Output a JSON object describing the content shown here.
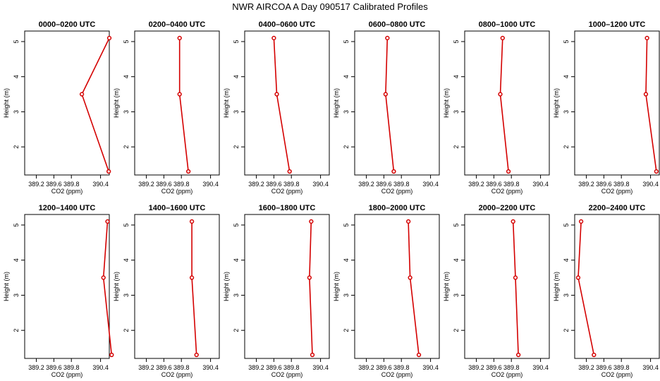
{
  "figure": {
    "title": "NWR AIRCOA A  Day 090517  Calibrated Profiles"
  },
  "style": {
    "line_color": "#d40000",
    "point_color": "#d40000",
    "axis_color": "#000000"
  },
  "chart_data": [
    {
      "type": "line",
      "title": "0000–0200 UTC",
      "xlabel": "CO2 (ppm)",
      "ylabel": "Height (m)",
      "xlim": [
        389.0,
        390.45
      ],
      "ylim": [
        1.2,
        5.3
      ],
      "xticks": [
        "389.2",
        "389.6",
        "389.8",
        "390.4"
      ],
      "yticks": [
        "2",
        "3",
        "4",
        "5"
      ],
      "series": [
        {
          "x": [
            390.45,
            389.98,
            390.44
          ],
          "y": [
            5.1,
            3.5,
            1.3
          ]
        }
      ]
    },
    {
      "type": "line",
      "title": "0200–0400 UTC",
      "xlabel": "CO2 (ppm)",
      "ylabel": "Height (m)",
      "xlim": [
        389.0,
        390.45
      ],
      "ylim": [
        1.2,
        5.3
      ],
      "xticks": [
        "389.2",
        "389.6",
        "389.8",
        "390.4"
      ],
      "yticks": [
        "2",
        "3",
        "4",
        "5"
      ],
      "series": [
        {
          "x": [
            389.77,
            389.77,
            389.92
          ],
          "y": [
            5.1,
            3.5,
            1.3
          ]
        }
      ]
    },
    {
      "type": "line",
      "title": "0400–0600 UTC",
      "xlabel": "CO2 (ppm)",
      "ylabel": "Height (m)",
      "xlim": [
        389.0,
        390.45
      ],
      "ylim": [
        1.2,
        5.3
      ],
      "xticks": [
        "389.2",
        "389.6",
        "389.8",
        "390.4"
      ],
      "yticks": [
        "2",
        "3",
        "4",
        "5"
      ],
      "series": [
        {
          "x": [
            389.5,
            389.55,
            389.77
          ],
          "y": [
            5.1,
            3.5,
            1.3
          ]
        }
      ]
    },
    {
      "type": "line",
      "title": "0600–0800 UTC",
      "xlabel": "CO2 (ppm)",
      "ylabel": "Height (m)",
      "xlim": [
        389.0,
        390.45
      ],
      "ylim": [
        1.2,
        5.3
      ],
      "xticks": [
        "389.2",
        "389.6",
        "389.8",
        "390.4"
      ],
      "yticks": [
        "2",
        "3",
        "4",
        "5"
      ],
      "series": [
        {
          "x": [
            389.56,
            389.53,
            389.67
          ],
          "y": [
            5.1,
            3.5,
            1.3
          ]
        }
      ]
    },
    {
      "type": "line",
      "title": "0800–1000 UTC",
      "xlabel": "CO2 (ppm)",
      "ylabel": "Height (m)",
      "xlim": [
        389.0,
        390.45
      ],
      "ylim": [
        1.2,
        5.3
      ],
      "xticks": [
        "389.2",
        "389.6",
        "389.8",
        "390.4"
      ],
      "yticks": [
        "2",
        "3",
        "4",
        "5"
      ],
      "series": [
        {
          "x": [
            389.65,
            389.61,
            389.75
          ],
          "y": [
            5.1,
            3.5,
            1.3
          ]
        }
      ]
    },
    {
      "type": "line",
      "title": "1000–1200 UTC",
      "xlabel": "CO2 (ppm)",
      "ylabel": "Height (m)",
      "xlim": [
        389.0,
        390.45
      ],
      "ylim": [
        1.2,
        5.3
      ],
      "xticks": [
        "389.2",
        "389.6",
        "389.8",
        "390.4"
      ],
      "yticks": [
        "2",
        "3",
        "4",
        "5"
      ],
      "series": [
        {
          "x": [
            390.24,
            390.22,
            390.4
          ],
          "y": [
            5.1,
            3.5,
            1.3
          ]
        }
      ]
    },
    {
      "type": "line",
      "title": "1200–1400 UTC",
      "xlabel": "CO2 (ppm)",
      "ylabel": "Height (m)",
      "xlim": [
        389.0,
        390.45
      ],
      "ylim": [
        1.2,
        5.3
      ],
      "xticks": [
        "389.2",
        "389.6",
        "389.8",
        "390.4"
      ],
      "yticks": [
        "2",
        "3",
        "4",
        "5"
      ],
      "series": [
        {
          "x": [
            390.42,
            390.35,
            390.49
          ],
          "y": [
            5.1,
            3.5,
            1.3
          ]
        }
      ]
    },
    {
      "type": "line",
      "title": "1400–1600 UTC",
      "xlabel": "CO2 (ppm)",
      "ylabel": "Height (m)",
      "xlim": [
        389.0,
        390.45
      ],
      "ylim": [
        1.2,
        5.3
      ],
      "xticks": [
        "389.2",
        "389.6",
        "389.8",
        "390.4"
      ],
      "yticks": [
        "2",
        "3",
        "4",
        "5"
      ],
      "series": [
        {
          "x": [
            389.98,
            389.98,
            390.06
          ],
          "y": [
            5.1,
            3.5,
            1.3
          ]
        }
      ]
    },
    {
      "type": "line",
      "title": "1600–1800 UTC",
      "xlabel": "CO2 (ppm)",
      "ylabel": "Height (m)",
      "xlim": [
        389.0,
        390.45
      ],
      "ylim": [
        1.2,
        5.3
      ],
      "xticks": [
        "389.2",
        "389.6",
        "389.8",
        "390.4"
      ],
      "yticks": [
        "2",
        "3",
        "4",
        "5"
      ],
      "series": [
        {
          "x": [
            390.14,
            390.11,
            390.16
          ],
          "y": [
            5.1,
            3.5,
            1.3
          ]
        }
      ]
    },
    {
      "type": "line",
      "title": "1800–2000 UTC",
      "xlabel": "CO2 (ppm)",
      "ylabel": "Height (m)",
      "xlim": [
        389.0,
        390.45
      ],
      "ylim": [
        1.2,
        5.3
      ],
      "xticks": [
        "389.2",
        "389.6",
        "389.8",
        "390.4"
      ],
      "yticks": [
        "2",
        "3",
        "4",
        "5"
      ],
      "series": [
        {
          "x": [
            389.92,
            389.95,
            390.1
          ],
          "y": [
            5.1,
            3.5,
            1.3
          ]
        }
      ]
    },
    {
      "type": "line",
      "title": "2000–2200 UTC",
      "xlabel": "CO2 (ppm)",
      "ylabel": "Height (m)",
      "xlim": [
        389.0,
        390.45
      ],
      "ylim": [
        1.2,
        5.3
      ],
      "xticks": [
        "389.2",
        "389.6",
        "389.8",
        "390.4"
      ],
      "yticks": [
        "2",
        "3",
        "4",
        "5"
      ],
      "series": [
        {
          "x": [
            389.83,
            389.87,
            389.92
          ],
          "y": [
            5.1,
            3.5,
            1.3
          ]
        }
      ]
    },
    {
      "type": "line",
      "title": "2200–2400 UTC",
      "xlabel": "CO2 (ppm)",
      "ylabel": "Height (m)",
      "xlim": [
        389.0,
        390.45
      ],
      "ylim": [
        1.2,
        5.3
      ],
      "xticks": [
        "389.2",
        "389.6",
        "389.8",
        "390.4"
      ],
      "yticks": [
        "2",
        "3",
        "4",
        "5"
      ],
      "series": [
        {
          "x": [
            389.11,
            389.06,
            389.33
          ],
          "y": [
            5.1,
            3.5,
            1.3
          ]
        }
      ]
    }
  ]
}
